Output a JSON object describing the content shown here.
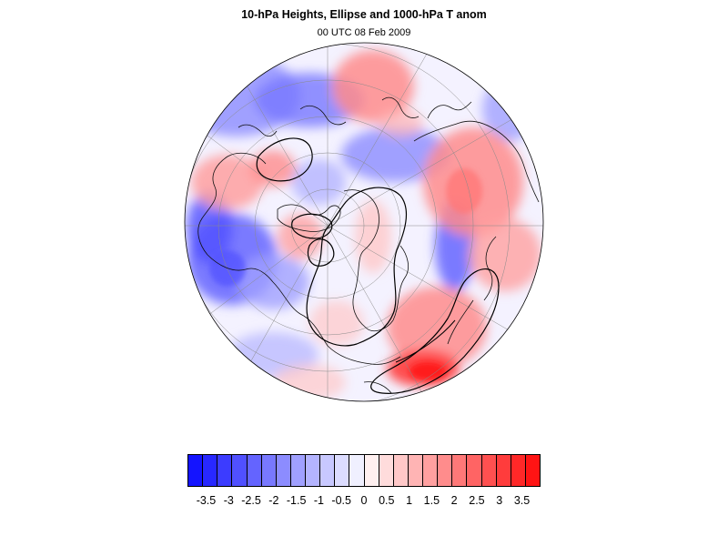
{
  "title": "10-hPa Heights, Ellipse and 1000-hPa T anom",
  "subtitle": "00 UTC 08 Feb 2009",
  "map": {
    "projection": "polar stereographic (Northern Hemisphere)",
    "field": "1000-hPa temperature anomaly",
    "overlays": [
      "10-hPa height contours",
      "ellipse fit",
      "coastlines",
      "lat/lon grid"
    ]
  },
  "colorbar": {
    "colors": [
      "#1414ff",
      "#2828ff",
      "#3c3cff",
      "#5050ff",
      "#6464ff",
      "#7878ff",
      "#8c8cff",
      "#a0a0ff",
      "#b4b4ff",
      "#c8c8ff",
      "#dcdcff",
      "#f0f0ff",
      "#fff0f0",
      "#ffdcdc",
      "#ffc8c8",
      "#ffb4b4",
      "#ffa0a0",
      "#ff8c8c",
      "#ff7878",
      "#ff6464",
      "#ff5050",
      "#ff3c3c",
      "#ff2828",
      "#ff1414"
    ],
    "labels": [
      "-3.5",
      "-3",
      "-2.5",
      "-2",
      "-1.5",
      "-1",
      "-0.5",
      "0",
      "0.5",
      "1",
      "1.5",
      "2",
      "2.5",
      "3",
      "3.5"
    ]
  }
}
